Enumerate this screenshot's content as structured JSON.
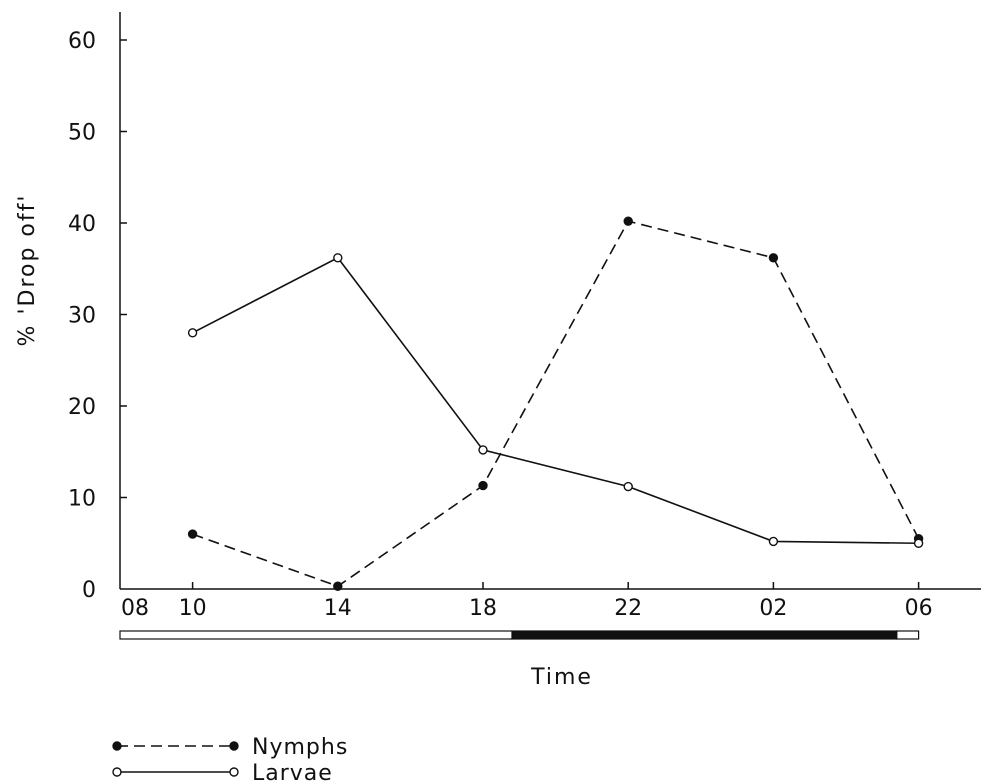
{
  "chart_data": {
    "type": "line",
    "title": "",
    "xlabel": "Time",
    "ylabel": "% 'Drop off'",
    "x_ticks": [
      "08",
      "10",
      "14",
      "18",
      "22",
      "02",
      "06"
    ],
    "y_ticks": [
      "0",
      "10",
      "20",
      "30",
      "40",
      "50",
      "60"
    ],
    "ylim": [
      0,
      60
    ],
    "grid": false,
    "legend_position": "bottom-left",
    "series": [
      {
        "name": "Nymphs",
        "style": "dashed",
        "marker": "filled-circle",
        "x": [
          "10",
          "14",
          "18",
          "22",
          "02",
          "06"
        ],
        "values": [
          6,
          0.3,
          11.3,
          40.2,
          36.2,
          5.5
        ]
      },
      {
        "name": "Larvae",
        "style": "solid",
        "marker": "open-circle",
        "x": [
          "10",
          "14",
          "18",
          "22",
          "02",
          "06"
        ],
        "values": [
          28,
          36.2,
          15.2,
          11.2,
          5.2,
          5
        ]
      }
    ],
    "light_dark_bar": [
      {
        "from": "08",
        "to": "18.8",
        "phase": "light"
      },
      {
        "from": "18.8",
        "to": "05.4",
        "phase": "dark"
      },
      {
        "from": "05.4",
        "to": "06",
        "phase": "light"
      }
    ],
    "colors": {
      "ink": "#111111",
      "background": "#ffffff"
    }
  }
}
